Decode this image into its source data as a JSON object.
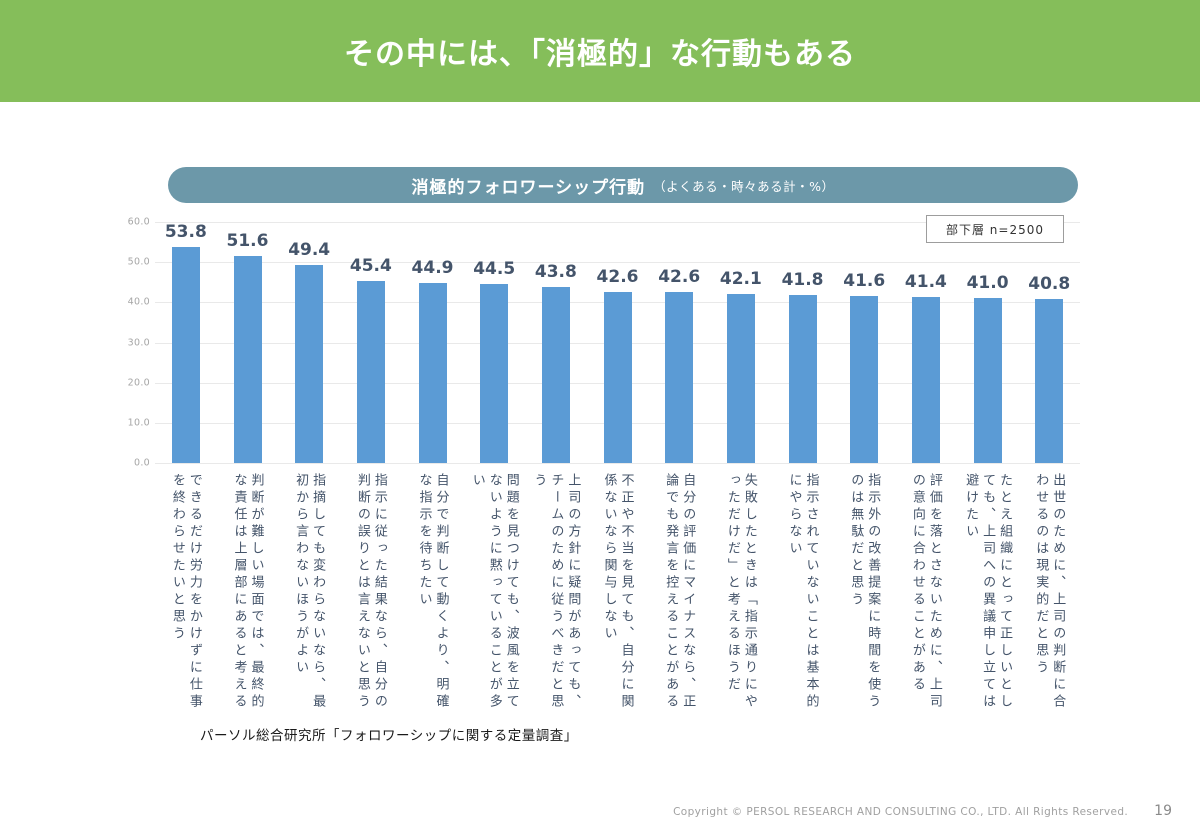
{
  "banner": {
    "title": "その中には、「消極的」な行動もある",
    "bg_color": "#85BE5A"
  },
  "chart_header": {
    "title": "消極的フォロワーシップ行動",
    "subtitle": "（よくある・時々ある計・%）",
    "bg_color": "#6C98A9"
  },
  "legend": {
    "label": "部下層  n=2500"
  },
  "chart_data": {
    "type": "bar",
    "title": "消極的フォロワーシップ行動（よくある・時々ある計・%）",
    "categories": [
      "できるだけ労力をかけずに仕事を終わらせたいと思う",
      "判断が難しい場面では、最終的な責任は上層部にあると考える",
      "指摘しても変わらないなら、最初から言わないほうがよい",
      "指示に従った結果なら、自分の判断の誤りとは言えないと思う",
      "自分で判断して動くより、明確な指示を待ちたい",
      "問題を見つけても、波風を立てないように黙っていることが多い",
      "上司の方針に疑問があっても、チームのために従うべきだと思う",
      "不正や不当を見ても、自分に関係ないなら関与しない",
      "自分の評価にマイナスなら、正論でも発言を控えることがある",
      "失敗したときは「指示通りにやっただけだ」と考えるほうだ",
      "指示されていないことは基本的にやらない",
      "指示外の改善提案に時間を使うのは無駄だと思う",
      "評価を落とさないために、上司の意向に合わせることがある",
      "たとえ組織にとって正しいとしても、上司への異議申し立ては避けたい",
      "出世のために、上司の判断に合わせるのは現実的だと思う"
    ],
    "values": [
      53.8,
      51.6,
      49.4,
      45.4,
      44.9,
      44.5,
      43.8,
      42.6,
      42.6,
      42.1,
      41.8,
      41.6,
      41.4,
      41.0,
      40.8
    ],
    "ylim": [
      0,
      60
    ],
    "ytick_step": 10,
    "ytick_labels": [
      "0.0",
      "10.0",
      "20.0",
      "30.0",
      "40.0",
      "50.0",
      "60.0"
    ],
    "grid": true,
    "legend_label": "部下層  n=2500",
    "legend_position": "top-right",
    "bar_color": "#5B9BD5",
    "value_label_color": "#44546A"
  },
  "source": "パーソル総合研究所「フォロワーシップに関する定量調査」",
  "footer": {
    "copyright": "Copyright © PERSOL RESEARCH AND CONSULTING CO., LTD. All Rights Reserved.",
    "page": "19"
  }
}
